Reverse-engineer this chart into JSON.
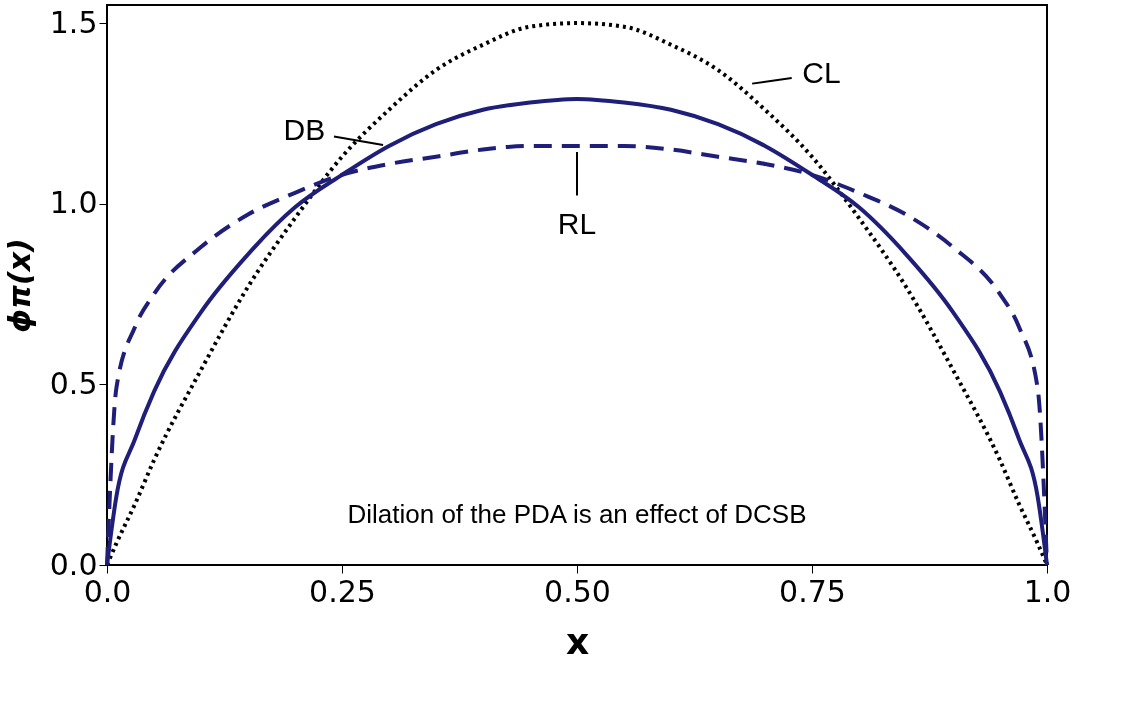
{
  "chart_data": {
    "type": "line",
    "xlabel": "x",
    "ylabel": "ϕπ(x)",
    "x": [
      0,
      0.01,
      0.03,
      0.05,
      0.1,
      0.15,
      0.2,
      0.25,
      0.3,
      0.35,
      0.4,
      0.45,
      0.5,
      0.55,
      0.6,
      0.65,
      0.7,
      0.75,
      0.8,
      0.85,
      0.9,
      0.95,
      0.97,
      0.99,
      1
    ],
    "series": [
      {
        "color": "#000000",
        "line_style": "dotted",
        "values": [
          0,
          0.06,
          0.17,
          0.29,
          0.54,
          0.77,
          0.96,
          1.13,
          1.26,
          1.37,
          1.44,
          1.49,
          1.5,
          1.49,
          1.44,
          1.37,
          1.26,
          1.13,
          0.96,
          0.77,
          0.54,
          0.29,
          0.17,
          0.06,
          0
        ]
      },
      {
        "color": "#1f1f7a",
        "line_style": "solid",
        "values": [
          0,
          0.19,
          0.35,
          0.48,
          0.7,
          0.86,
          0.99,
          1.08,
          1.16,
          1.22,
          1.26,
          1.28,
          1.29,
          1.28,
          1.26,
          1.22,
          1.16,
          1.08,
          0.99,
          0.86,
          0.7,
          0.48,
          0.35,
          0.19,
          0
        ]
      },
      {
        "color": "#1f1f7a",
        "line_style": "dashed",
        "values": [
          0,
          0.49,
          0.66,
          0.75,
          0.88,
          0.97,
          1.03,
          1.08,
          1.11,
          1.13,
          1.15,
          1.16,
          1.16,
          1.16,
          1.15,
          1.13,
          1.11,
          1.08,
          1.03,
          0.97,
          0.88,
          0.75,
          0.66,
          0.49,
          0
        ]
      }
    ],
    "xlim": [
      0,
      1
    ],
    "ylim": [
      0,
      1.55
    ],
    "xticks": [
      {
        "value": 0,
        "label": "0.0"
      },
      0.25,
      {
        "value": 0.5,
        "label": "0.50"
      },
      0.75,
      {
        "value": 1,
        "label": "1.0"
      }
    ],
    "yticks": [
      {
        "value": 0,
        "label": "0.0"
      },
      0.5,
      {
        "value": 1,
        "label": "1.0"
      },
      1.5
    ],
    "grid": false,
    "annotations": [
      {
        "text": "DB",
        "x": 0.3,
        "y": 1.16
      },
      {
        "text": "CL",
        "x": 0.68,
        "y": 1.33
      },
      {
        "text": "RL",
        "x": 0.5,
        "y": 1.16
      },
      "Dilation of the PDA is an effect of DCSB"
    ]
  }
}
